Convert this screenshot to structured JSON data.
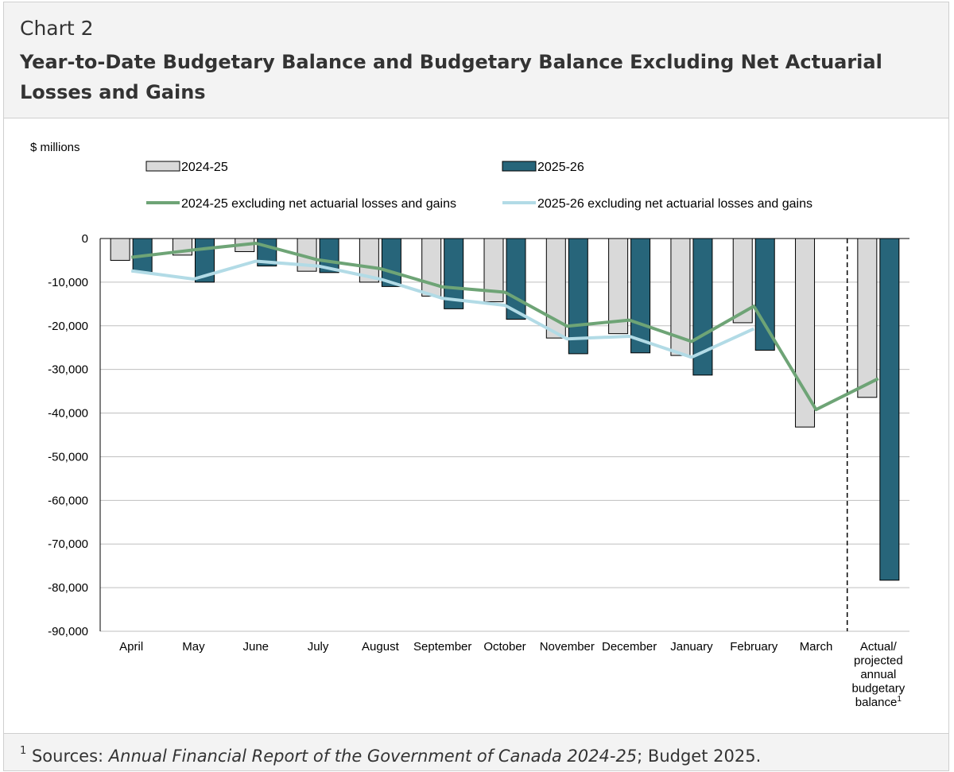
{
  "header": {
    "label": "Chart 2",
    "title": "Year-to-Date Budgetary Balance and Budgetary Balance Excluding Net Actuarial Losses and Gains"
  },
  "footer": {
    "sup": "1",
    "prefix": "Sources: ",
    "italic": "Annual Financial Report of the Government of Canada 2024-25",
    "suffix": "; Budget 2025."
  },
  "colors": {
    "bar_2024": "#d9d9d9",
    "bar_2025": "#27657a",
    "line_2024": "#6ea476",
    "line_2025": "#b2dbe6",
    "grid": "#bfbfbf"
  },
  "chart_data": {
    "type": "bar",
    "yunit": "$ millions",
    "ylim": [
      -90000,
      0
    ],
    "yticks": [
      0,
      -10000,
      -20000,
      -30000,
      -40000,
      -50000,
      -60000,
      -70000,
      -80000,
      -90000
    ],
    "ytick_labels": [
      "0",
      "-10,000",
      "-20,000",
      "-30,000",
      "-40,000",
      "-50,000",
      "-60,000",
      "-70,000",
      "-80,000",
      "-90,000"
    ],
    "categories": [
      "April",
      "May",
      "June",
      "July",
      "August",
      "September",
      "October",
      "November",
      "December",
      "January",
      "February",
      "March",
      "Actual/ projected annual budgetary balance"
    ],
    "category_lines": [
      [
        "April"
      ],
      [
        "May"
      ],
      [
        "June"
      ],
      [
        "July"
      ],
      [
        "August"
      ],
      [
        "September"
      ],
      [
        "October"
      ],
      [
        "November"
      ],
      [
        "December"
      ],
      [
        "January"
      ],
      [
        "February"
      ],
      [
        "March"
      ],
      [
        "Actual/",
        "projected",
        "annual",
        "budgetary",
        "balance"
      ]
    ],
    "last_category_sup": "1",
    "grid": true,
    "legend_position": "top",
    "series": [
      {
        "name": "2024-25",
        "type": "bar",
        "values": [
          -5000,
          -3800,
          -3000,
          -7500,
          -10000,
          -13200,
          -14500,
          -22800,
          -21800,
          -26800,
          -19300,
          -43200,
          -36400
        ]
      },
      {
        "name": "2025-26",
        "type": "bar",
        "values": [
          -7700,
          -10000,
          -6300,
          -7800,
          -11000,
          -16100,
          -18500,
          -26400,
          -26200,
          -31300,
          -25600,
          null,
          -78300
        ]
      },
      {
        "name": "2024-25 excluding net actuarial losses and gains",
        "type": "line",
        "values": [
          -4300,
          -2600,
          -1100,
          -4900,
          -6900,
          -11100,
          -12300,
          -20100,
          -18700,
          -23600,
          -15500,
          -39200,
          -32100
        ]
      },
      {
        "name": "2025-26 excluding net actuarial losses and gains",
        "type": "line",
        "values": [
          -7400,
          -9300,
          -5200,
          -6300,
          -9300,
          -13700,
          -15300,
          -23000,
          -22400,
          -27200,
          -20700,
          null,
          null
        ]
      }
    ]
  }
}
